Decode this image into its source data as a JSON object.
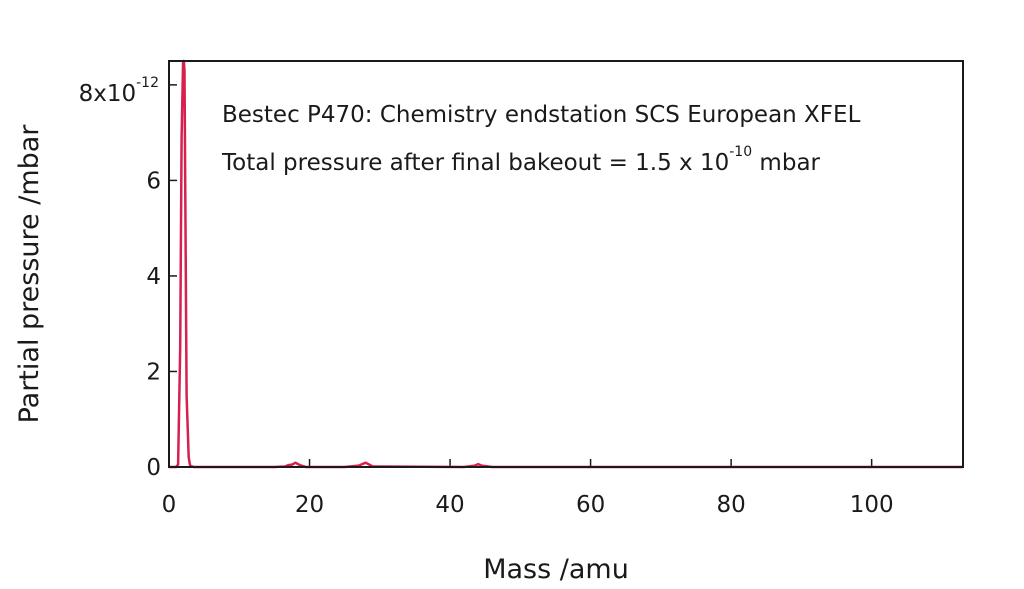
{
  "chart_data": {
    "type": "line",
    "xlabel": "Mass /amu",
    "ylabel": "Partial pressure /mbar",
    "xlim": [
      0,
      113
    ],
    "ylim": [
      0,
      8.5
    ],
    "y_multiplier": {
      "base": "8x10",
      "exponent": "-12"
    },
    "xticks": [
      0,
      20,
      40,
      60,
      80,
      100
    ],
    "yticks": [
      0,
      2,
      4,
      6
    ],
    "ytick_labels": [
      "0",
      "2",
      "4",
      "6"
    ],
    "grid": false,
    "annotations": [
      {
        "text": "Bestec P470: Chemistry endstation SCS European XFEL"
      },
      {
        "text": "Total pressure after final bakeout = 1.5 x 10",
        "sup": "-10",
        "suffix": " mbar"
      }
    ],
    "series": [
      {
        "color": "#d6204e",
        "x": [
          0,
          0.5,
          1.0,
          1.3,
          1.6,
          1.8,
          2.0,
          2.1,
          2.2,
          2.3,
          2.5,
          2.8,
          3.0,
          3.5,
          5,
          10,
          15,
          16.5,
          17,
          17.5,
          18,
          18.5,
          19,
          19.5,
          25,
          27,
          27.5,
          28,
          28.5,
          29,
          42,
          43.5,
          44,
          44.5,
          46,
          60,
          80,
          100,
          113
        ],
        "y": [
          0,
          0,
          0,
          0.05,
          2.5,
          6.9,
          8.5,
          8.5,
          8.3,
          6.0,
          1.5,
          0.2,
          0.03,
          0,
          0,
          0,
          0,
          0.01,
          0.04,
          0.05,
          0.09,
          0.05,
          0.02,
          0,
          0,
          0.03,
          0.06,
          0.09,
          0.05,
          0.01,
          0,
          0.03,
          0.06,
          0.03,
          0,
          0,
          0,
          0,
          0
        ]
      }
    ]
  }
}
